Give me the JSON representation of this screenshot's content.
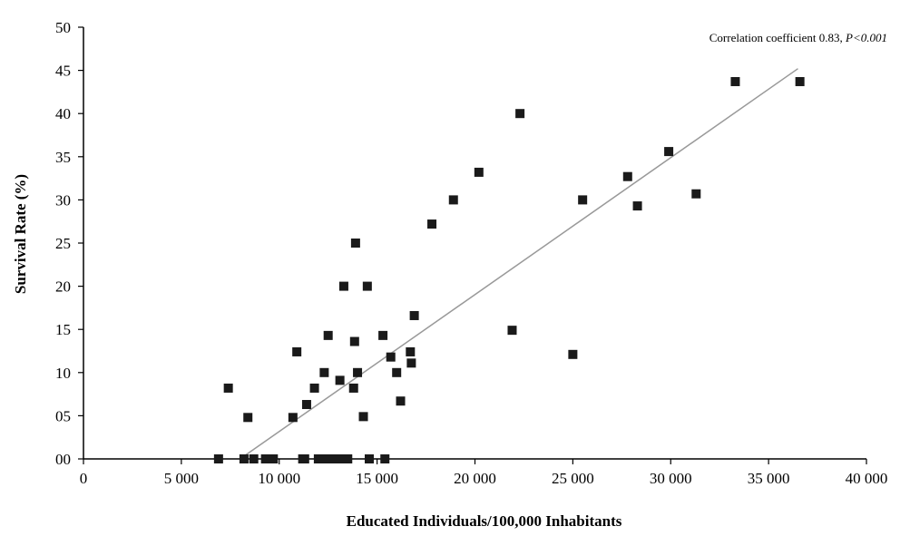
{
  "chart_data": {
    "type": "scatter",
    "title": "",
    "xlabel": "Educated Individuals/100,000  Inhabitants",
    "ylabel": "Survival Rate (%)",
    "xlim": [
      0,
      40000
    ],
    "ylim": [
      0,
      50
    ],
    "xticks": [
      0,
      5000,
      10000,
      15000,
      20000,
      25000,
      30000,
      35000,
      40000
    ],
    "xtick_labels": [
      "0",
      "5 000",
      "10 000",
      "15 000",
      "20 000",
      "25 000",
      "30 000",
      "35 000",
      "40 000"
    ],
    "yticks": [
      0,
      5,
      10,
      15,
      20,
      25,
      30,
      35,
      40,
      45,
      50
    ],
    "ytick_labels": [
      "00",
      "05",
      "10",
      "15",
      "20",
      "25",
      "30",
      "35",
      "40",
      "45",
      "50"
    ],
    "grid": false,
    "legend": "none",
    "annotation": {
      "prefix": "Correlation coefficient  0.83,  ",
      "p_value": "P<0.001"
    },
    "trendline": {
      "x": [
        8000,
        36500
      ],
      "y": [
        0,
        45.2
      ]
    },
    "marker_color": "#1a1a1a",
    "line_color": "#999999",
    "points": [
      {
        "x": 6900,
        "y": 0
      },
      {
        "x": 7400,
        "y": 8.2
      },
      {
        "x": 8200,
        "y": 0
      },
      {
        "x": 8400,
        "y": 4.8
      },
      {
        "x": 8700,
        "y": 0
      },
      {
        "x": 9300,
        "y": 0
      },
      {
        "x": 9700,
        "y": 0
      },
      {
        "x": 10700,
        "y": 4.8
      },
      {
        "x": 10900,
        "y": 12.4
      },
      {
        "x": 11200,
        "y": 0
      },
      {
        "x": 11300,
        "y": 0
      },
      {
        "x": 11400,
        "y": 6.3
      },
      {
        "x": 11800,
        "y": 8.2
      },
      {
        "x": 12000,
        "y": 0
      },
      {
        "x": 12300,
        "y": 10
      },
      {
        "x": 12400,
        "y": 0
      },
      {
        "x": 12500,
        "y": 14.3
      },
      {
        "x": 12700,
        "y": 0
      },
      {
        "x": 12900,
        "y": 0
      },
      {
        "x": 13100,
        "y": 9.1
      },
      {
        "x": 13200,
        "y": 0
      },
      {
        "x": 13300,
        "y": 20
      },
      {
        "x": 13500,
        "y": 0
      },
      {
        "x": 13800,
        "y": 8.2
      },
      {
        "x": 13850,
        "y": 13.6
      },
      {
        "x": 13900,
        "y": 25
      },
      {
        "x": 14000,
        "y": 10
      },
      {
        "x": 14300,
        "y": 4.9
      },
      {
        "x": 14500,
        "y": 20
      },
      {
        "x": 14600,
        "y": 0
      },
      {
        "x": 15300,
        "y": 14.3
      },
      {
        "x": 15400,
        "y": 0
      },
      {
        "x": 15700,
        "y": 11.8
      },
      {
        "x": 16000,
        "y": 10
      },
      {
        "x": 16200,
        "y": 6.7
      },
      {
        "x": 16700,
        "y": 12.4
      },
      {
        "x": 16750,
        "y": 11.1
      },
      {
        "x": 16900,
        "y": 16.6
      },
      {
        "x": 17800,
        "y": 27.2
      },
      {
        "x": 18900,
        "y": 30
      },
      {
        "x": 20200,
        "y": 33.2
      },
      {
        "x": 21900,
        "y": 14.9
      },
      {
        "x": 22300,
        "y": 40
      },
      {
        "x": 25000,
        "y": 12.1
      },
      {
        "x": 25500,
        "y": 30
      },
      {
        "x": 27800,
        "y": 32.7
      },
      {
        "x": 28300,
        "y": 29.3
      },
      {
        "x": 29900,
        "y": 35.6
      },
      {
        "x": 31300,
        "y": 30.7
      },
      {
        "x": 33300,
        "y": 43.7
      },
      {
        "x": 36600,
        "y": 43.7
      }
    ]
  }
}
